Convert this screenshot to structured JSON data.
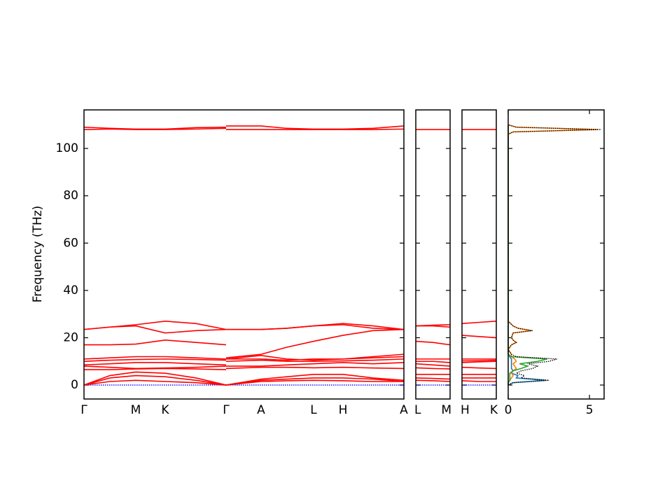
{
  "chart_data": [
    {
      "type": "line",
      "y_label": "Frequency (THz)",
      "x": [
        0,
        0.37,
        0.74,
        1.16,
        1.6,
        2.03,
        2.03,
        2.03,
        2.53,
        2.9,
        3.28,
        3.7,
        4.13,
        4.57
      ],
      "xlim": [
        0,
        4.57
      ],
      "xticks": [
        {
          "value": 0,
          "label": "Γ"
        },
        {
          "value": 0.74,
          "label": "M"
        },
        {
          "value": 1.16,
          "label": "K"
        },
        {
          "value": 2.03,
          "label": "Γ"
        },
        {
          "value": 2.53,
          "label": "A"
        },
        {
          "value": 3.28,
          "label": "L"
        },
        {
          "value": 3.7,
          "label": "H"
        },
        {
          "value": 4.57,
          "label": "A"
        }
      ],
      "ylim": [
        -5.9,
        116.3
      ],
      "yticks": [
        0,
        20,
        40,
        60,
        80,
        100
      ],
      "series": [
        {
          "color": "#0000ff",
          "dashed": true,
          "values": [
            0,
            0,
            0,
            0,
            0,
            0,
            null,
            0,
            0,
            0,
            0,
            0,
            0,
            0
          ]
        },
        {
          "color": "#ff0000",
          "values": [
            0,
            1.5,
            2,
            1.5,
            1,
            0,
            null,
            0,
            1.5,
            1.8,
            2,
            1.8,
            1.5,
            1.5
          ]
        },
        {
          "color": "#ff0000",
          "values": [
            0,
            3,
            4,
            3.5,
            2,
            0,
            null,
            0,
            2,
            2.5,
            3,
            3,
            2.5,
            1.5
          ]
        },
        {
          "color": "#ff0000",
          "values": [
            0,
            4,
            5.5,
            5,
            3,
            0,
            null,
            0,
            2.5,
            3.5,
            4.5,
            4.5,
            3,
            2
          ]
        },
        {
          "color": "#ff0000",
          "values": [
            6.5,
            6.5,
            6.8,
            7,
            6.8,
            6.5,
            null,
            7,
            7.5,
            7.5,
            7.3,
            7.5,
            7.2,
            7
          ]
        },
        {
          "color": "#ff0000",
          "values": [
            8,
            7.5,
            7,
            7.2,
            7.5,
            8,
            null,
            8,
            8,
            8.5,
            9,
            9.5,
            9,
            9.5
          ]
        },
        {
          "color": "#ff0000",
          "values": [
            8.5,
            9,
            9.5,
            9.5,
            9,
            8.5,
            null,
            10,
            10.5,
            10,
            10,
            10.2,
            10.5,
            11
          ]
        },
        {
          "color": "#ff0000",
          "values": [
            10,
            10.5,
            10.8,
            11,
            10.8,
            10.5,
            null,
            11,
            11,
            10.5,
            11,
            11,
            11.5,
            12
          ]
        },
        {
          "color": "#ff0000",
          "values": [
            11,
            11.5,
            12,
            12,
            11.5,
            11,
            null,
            11,
            12.5,
            11,
            10.5,
            11,
            12,
            13
          ]
        },
        {
          "color": "#ff0000",
          "values": [
            17,
            17,
            17.3,
            19,
            18,
            17,
            null,
            11.5,
            13,
            16,
            18.5,
            21,
            23,
            23.5
          ]
        },
        {
          "color": "#ff0000",
          "values": [
            23.5,
            24.5,
            25,
            22,
            23,
            23.5,
            null,
            23.5,
            23.5,
            24,
            25,
            25.5,
            24,
            23.5
          ]
        },
        {
          "color": "#ff0000",
          "values": [
            23.5,
            24.5,
            25.5,
            27,
            26,
            23.5,
            null,
            23.5,
            23.5,
            24,
            25,
            26,
            25,
            23.5
          ]
        },
        {
          "color": "#ff0000",
          "values": [
            108,
            108.2,
            108,
            108,
            108.2,
            108.5,
            null,
            108,
            108,
            108,
            108,
            108,
            108,
            108.2
          ]
        },
        {
          "color": "#ff0000",
          "values": [
            109,
            108.5,
            108.2,
            108.2,
            108.8,
            109,
            null,
            109.5,
            109.5,
            108.5,
            108.2,
            108.2,
            108.5,
            109.5
          ]
        }
      ]
    },
    {
      "type": "line",
      "x": [
        0,
        0.245,
        0.49
      ],
      "xlim": [
        0,
        0.49
      ],
      "xticks": [
        {
          "value": 0,
          "label": "L"
        },
        {
          "value": 0.49,
          "label": "M"
        }
      ],
      "ylim": [
        -5.9,
        116.3
      ],
      "yticks": [
        0,
        20,
        40,
        60,
        80,
        100
      ],
      "series": [
        {
          "color": "#0000ff",
          "dashed": true,
          "values": [
            0,
            0,
            0
          ]
        },
        {
          "color": "#ff0000",
          "values": [
            2,
            1.8,
            1.5
          ]
        },
        {
          "color": "#ff0000",
          "values": [
            3,
            2.8,
            2.5
          ]
        },
        {
          "color": "#ff0000",
          "values": [
            4.5,
            4.5,
            4.5
          ]
        },
        {
          "color": "#ff0000",
          "values": [
            7.3,
            7,
            6.8
          ]
        },
        {
          "color": "#ff0000",
          "values": [
            9,
            8.5,
            8
          ]
        },
        {
          "color": "#ff0000",
          "values": [
            10,
            10,
            9.5
          ]
        },
        {
          "color": "#ff0000",
          "values": [
            11,
            11,
            11
          ]
        },
        {
          "color": "#ff0000",
          "values": [
            18.5,
            18,
            17
          ]
        },
        {
          "color": "#ff0000",
          "values": [
            25,
            25,
            24.5
          ]
        },
        {
          "color": "#ff0000",
          "values": [
            25,
            25.3,
            25.5
          ]
        },
        {
          "color": "#ff0000",
          "values": [
            108,
            108,
            108
          ]
        }
      ]
    },
    {
      "type": "line",
      "x": [
        0,
        0.245,
        0.49
      ],
      "xlim": [
        0,
        0.49
      ],
      "xticks": [
        {
          "value": 0,
          "label": "H"
        },
        {
          "value": 0.49,
          "label": "K"
        }
      ],
      "ylim": [
        -5.9,
        116.3
      ],
      "yticks": [
        0,
        20,
        40,
        60,
        80,
        100
      ],
      "series": [
        {
          "color": "#0000ff",
          "dashed": true,
          "values": [
            0,
            0,
            0
          ]
        },
        {
          "color": "#ff0000",
          "values": [
            1.8,
            1.5,
            1.5
          ]
        },
        {
          "color": "#ff0000",
          "values": [
            3,
            3,
            3
          ]
        },
        {
          "color": "#ff0000",
          "values": [
            4.5,
            4.5,
            4.5
          ]
        },
        {
          "color": "#ff0000",
          "values": [
            7.5,
            7.2,
            7
          ]
        },
        {
          "color": "#ff0000",
          "values": [
            9.5,
            9.8,
            10
          ]
        },
        {
          "color": "#ff0000",
          "values": [
            10.2,
            10.3,
            10.5
          ]
        },
        {
          "color": "#ff0000",
          "values": [
            11,
            11,
            11
          ]
        },
        {
          "color": "#ff0000",
          "values": [
            21,
            20.5,
            20
          ]
        },
        {
          "color": "#ff0000",
          "values": [
            26,
            26.5,
            27
          ]
        },
        {
          "color": "#ff0000",
          "values": [
            108,
            108,
            108
          ]
        }
      ]
    },
    {
      "type": "dos",
      "frequencies": [
        0,
        1,
        2,
        3,
        4,
        5,
        6,
        7,
        8,
        9,
        10,
        11,
        12,
        13,
        15,
        17,
        18,
        19,
        20,
        22,
        23,
        24,
        25,
        27,
        106,
        107,
        108,
        109,
        110
      ],
      "xlim": [
        0,
        5.9
      ],
      "xticks": [
        0,
        5
      ],
      "ylim": [
        -5.9,
        116.3
      ],
      "yticks": [
        0,
        20,
        40,
        60,
        80,
        100
      ],
      "series": [
        {
          "color": "#1f77b4",
          "values": [
            0,
            0.3,
            2.3,
            0.5,
            0.6,
            0.2,
            0.3,
            0.2,
            0.2,
            0.2,
            0.2,
            0.2,
            0.1,
            0,
            0,
            0,
            0,
            0,
            0,
            0,
            0,
            0,
            0,
            0,
            0,
            0,
            0,
            0,
            0
          ]
        },
        {
          "color": "#ff7f0e",
          "values": [
            0,
            0,
            0.1,
            0.2,
            0.3,
            0.2,
            0.3,
            0.5,
            0.4,
            0.3,
            0.5,
            0.4,
            0.2,
            0.2,
            0,
            0.2,
            0.5,
            0.3,
            0.2,
            0.3,
            1.4,
            0.6,
            0.3,
            0,
            0,
            0.3,
            5.5,
            0.5,
            0
          ]
        },
        {
          "color": "#2ca02c",
          "values": [
            0,
            0,
            0.1,
            0.1,
            0.1,
            0.1,
            0.3,
            0.8,
            1.2,
            0.7,
            1.8,
            2.4,
            0.2,
            0,
            0,
            0,
            0,
            0,
            0,
            0,
            0,
            0,
            0,
            0,
            0,
            0,
            0,
            0,
            0
          ]
        },
        {
          "color": "#000000",
          "dashed": true,
          "values": [
            0,
            0.3,
            2.5,
            0.8,
            1,
            0.5,
            0.8,
            1.5,
            1.8,
            1.2,
            2.5,
            3,
            0.5,
            0.2,
            0,
            0.2,
            0.5,
            0.3,
            0.2,
            0.3,
            1.5,
            0.6,
            0.3,
            0,
            0,
            0.3,
            5.7,
            0.5,
            0
          ]
        }
      ]
    }
  ]
}
